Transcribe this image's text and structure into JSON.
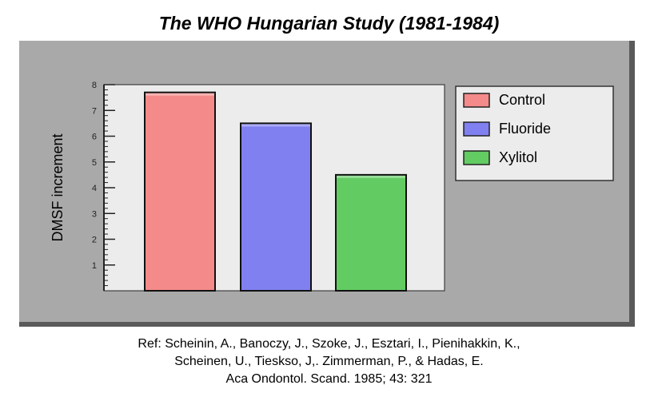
{
  "title": "The WHO Hungarian Study (1981-1984)",
  "colors": {
    "panel_bg": "#a9a9a9",
    "plot_bg": "#ececec",
    "legend_bg": "#ececec",
    "control": "#f48a8a",
    "fluoride": "#8080f0",
    "xylitol": "#62cc62"
  },
  "chart_data": {
    "type": "bar",
    "categories": [
      "Control",
      "Fluoride",
      "Xylitol"
    ],
    "values": [
      7.7,
      6.5,
      4.5
    ],
    "ylabel": "DMSF increment",
    "xlabel": "",
    "ylim": [
      0,
      8
    ],
    "yticks": [
      "1",
      "2",
      "3",
      "4",
      "5",
      "6",
      "7",
      "8"
    ],
    "legend": {
      "placement": "right",
      "entries": [
        "Control",
        "Fluoride",
        "Xylitol"
      ]
    },
    "grid": false
  },
  "reference": {
    "line1": "Ref: Scheinin, A., Banoczy, J., Szoke, J., Esztari, I., Pienihakkin, K.,",
    "line2": "Scheinen, U., Tieskso, J,. Zimmerman, P., & Hadas, E.",
    "line3": "Aca Ondontol. Scand. 1985; 43: 321"
  }
}
